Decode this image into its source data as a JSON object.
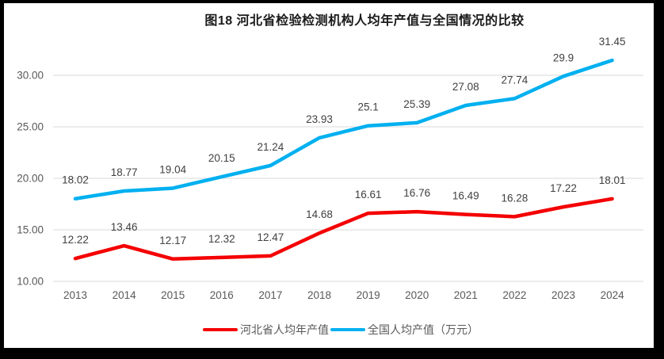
{
  "title": "图18 河北省检验检测机构人均年产值与全国情况的比较",
  "chart_data": {
    "type": "line",
    "title": "图18 河北省检验检测机构人均年产值与全国情况的比较",
    "categories": [
      "2013",
      "2014",
      "2015",
      "2016",
      "2017",
      "2018",
      "2019",
      "2020",
      "2021",
      "2022",
      "2023",
      "2024"
    ],
    "series": [
      {
        "name": "河北省人均年产值",
        "color": "#f40000",
        "values": [
          12.22,
          13.46,
          12.17,
          12.32,
          12.47,
          14.68,
          16.61,
          16.76,
          16.49,
          16.28,
          17.22,
          18.01
        ],
        "labels": [
          "12.22",
          "13.46",
          "12.17",
          "12.32",
          "12.47",
          "14.68",
          "16.61",
          "16.76",
          "16.49",
          "16.28",
          "17.22",
          "18.01"
        ]
      },
      {
        "name": "全国人均产值（万元）",
        "color": "#00b0f0",
        "values": [
          18.02,
          18.77,
          19.04,
          20.15,
          21.24,
          23.93,
          25.1,
          25.39,
          27.08,
          27.74,
          29.9,
          31.45
        ],
        "labels": [
          "18.02",
          "18.77",
          "19.04",
          "20.15",
          "21.24",
          "23.93",
          "25.1",
          "25.39",
          "27.08",
          "27.74",
          "29.9",
          "31.45"
        ]
      }
    ],
    "yticks": [
      10,
      15,
      20,
      25,
      30
    ],
    "ytick_labels": [
      "10.00",
      "15.00",
      "20.00",
      "25.00",
      "30.00"
    ],
    "ylim": [
      10,
      32
    ],
    "grid": true,
    "legend_position": "bottom",
    "grid_color": "#d9d9d9",
    "axis_label_color": "#595959",
    "data_label_color": "#404040"
  }
}
